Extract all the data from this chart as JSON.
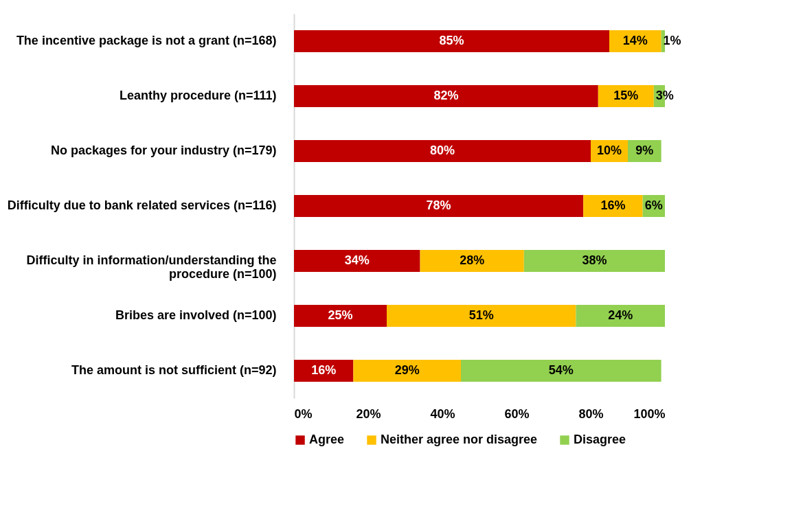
{
  "chart_data": {
    "type": "bar",
    "orientation": "horizontal",
    "stacked": true,
    "categories": [
      "The incentive package is not a grant (n=168)",
      "Leanthy procedure (n=111)",
      "No packages for your industry (n=179)",
      "Difficulty due to bank related services (n=116)",
      "Difficulty in information/understanding the procedure  (n=100)",
      "Bribes are involved (n=100)",
      "The amount is not sufficient (n=92)"
    ],
    "series": [
      {
        "name": "Agree",
        "color": "#c00000",
        "values": [
          85,
          82,
          80,
          78,
          34,
          25,
          16
        ],
        "value_labels": [
          "85%",
          "82%",
          "80%",
          "78%",
          "34%",
          "25%",
          "16%"
        ]
      },
      {
        "name": "Neither agree nor disagree",
        "color": "#ffc000",
        "values": [
          14,
          15,
          10,
          16,
          28,
          51,
          29
        ],
        "value_labels": [
          "14%",
          "15%",
          "10%",
          "16%",
          "28%",
          "51%",
          "29%"
        ]
      },
      {
        "name": "Disagree",
        "color": "#92d050",
        "values": [
          1,
          3,
          9,
          6,
          38,
          24,
          54
        ],
        "value_labels": [
          "1%",
          "3%",
          "9%",
          "6%",
          "38%",
          "24%",
          "54%"
        ]
      }
    ],
    "xlim": [
      0,
      100
    ],
    "xticks": [
      {
        "value": 0,
        "label": "0%"
      },
      {
        "value": 20,
        "label": "20%"
      },
      {
        "value": 40,
        "label": "40%"
      },
      {
        "value": 60,
        "label": "60%"
      },
      {
        "value": 80,
        "label": "80%"
      },
      {
        "value": 100,
        "label": "100%"
      }
    ],
    "grid": false,
    "legend": "bottom"
  }
}
